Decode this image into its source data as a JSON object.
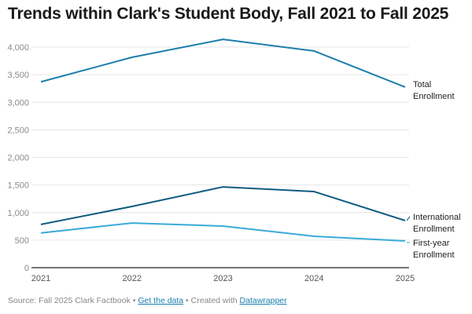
{
  "chart_data": {
    "type": "line",
    "title": "Trends within Clark's Student Body, Fall 2021 to Fall 2025",
    "xlabel": "",
    "ylabel": "",
    "x": [
      "2021",
      "2022",
      "2023",
      "2024",
      "2025"
    ],
    "ylim": [
      0,
      4000
    ],
    "yticks": [
      0,
      500,
      1000,
      1500,
      2000,
      2500,
      3000,
      3500,
      4000
    ],
    "ytick_labels": [
      "0",
      "500",
      "1,000",
      "1,500",
      "2,000",
      "2,500",
      "3,000",
      "3,500",
      "4,000"
    ],
    "grid": true,
    "series": [
      {
        "name": "Total Enrollment",
        "label_lines": [
          "Total",
          "Enrollment"
        ],
        "color": "#1b7eab",
        "values": [
          3370,
          3815,
          4140,
          3930,
          3275
        ]
      },
      {
        "name": "International Enrollment",
        "label_lines": [
          "International",
          "Enrollment"
        ],
        "color": "#0f5b80",
        "values": [
          785,
          1110,
          1465,
          1380,
          855
        ]
      },
      {
        "name": "First-year Enrollment",
        "label_lines": [
          "First-year",
          "Enrollment"
        ],
        "color": "#3aaad8",
        "values": [
          630,
          810,
          755,
          570,
          485
        ]
      }
    ]
  },
  "footer": {
    "source": "Source: Fall 2025 Clark Factbook • ",
    "get_data": "Get the data",
    "sep": " • Created with ",
    "created_with": "Datawrapper"
  }
}
